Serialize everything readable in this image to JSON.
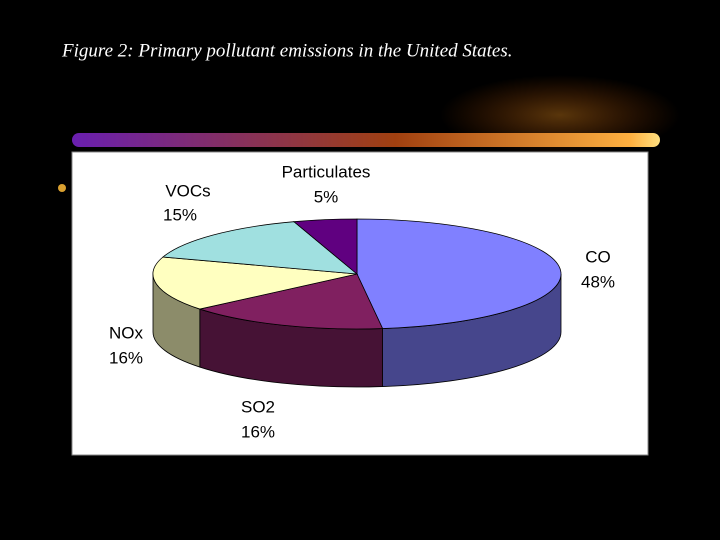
{
  "chart_data": {
    "type": "pie3d",
    "title": "Figure 2: Primary pollutant emissions in the United States.",
    "categories": [
      "CO",
      "SO2",
      "NOx",
      "VOCs",
      "Particulates"
    ],
    "values": [
      48,
      16,
      16,
      15,
      5
    ],
    "value_labels": [
      "48%",
      "16%",
      "16%",
      "15%",
      "5%"
    ],
    "colors": [
      "#8080ff",
      "#802060",
      "#ffffc0",
      "#a0e0e0",
      "#600080"
    ]
  }
}
